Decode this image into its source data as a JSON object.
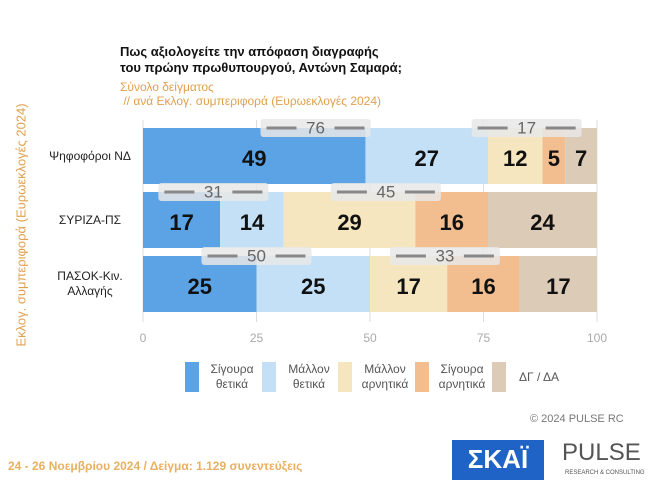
{
  "chart_data": {
    "type": "stacked-bar-horizontal",
    "title": [
      "Πως αξιολογείτε  την απόφαση διαγραφής",
      "του πρώην πρωθυπουργού, Αντώνη Σαμαρά;"
    ],
    "subtitle": [
      "Σύνολο δείγματος",
      " // ανά Εκλογ. συμπεριφορά (Ευρωεκλογές 2024)"
    ],
    "y_axis_label": "Εκλογ. συμπεριφορά (Ευρωεκλογές 2024)",
    "categories": [
      "Ψηφοφόροι ΝΔ",
      "ΣΥΡΙΖΑ-ΠΣ",
      "ΠΑΣΟΚ-Κιν. Αλλαγής"
    ],
    "series": [
      {
        "name": "Σίγουρα θετικά",
        "color": "#5ca3e6",
        "values": [
          49,
          17,
          25
        ]
      },
      {
        "name": "Μάλλον θετικά",
        "color": "#c3e0f7",
        "values": [
          27,
          14,
          25
        ]
      },
      {
        "name": "Μάλλον αρνητικά",
        "color": "#f5e6bf",
        "values": [
          12,
          29,
          17
        ]
      },
      {
        "name": "Σίγουρα αρνητικά",
        "color": "#f2bd8f",
        "values": [
          5,
          16,
          16
        ]
      },
      {
        "name": "ΔΓ / ΔΑ",
        "color": "#dccbb6",
        "values": [
          7,
          24,
          17
        ]
      }
    ],
    "positive_totals": [
      76,
      31,
      50
    ],
    "negative_totals": [
      17,
      45,
      33
    ],
    "xlim": [
      0,
      100
    ],
    "xticks": [
      0,
      25,
      50,
      75,
      100
    ],
    "grid": true,
    "copyright": "© 2024  PULSE RC",
    "footer": "24 - 26 Νοεμβρίου 2024  /  Δείγμα:  1.129 συνεντεύξεις",
    "logos": [
      "ΣΚΑΪ",
      "PULSE",
      "RESEARCH & CONSULTING"
    ]
  }
}
